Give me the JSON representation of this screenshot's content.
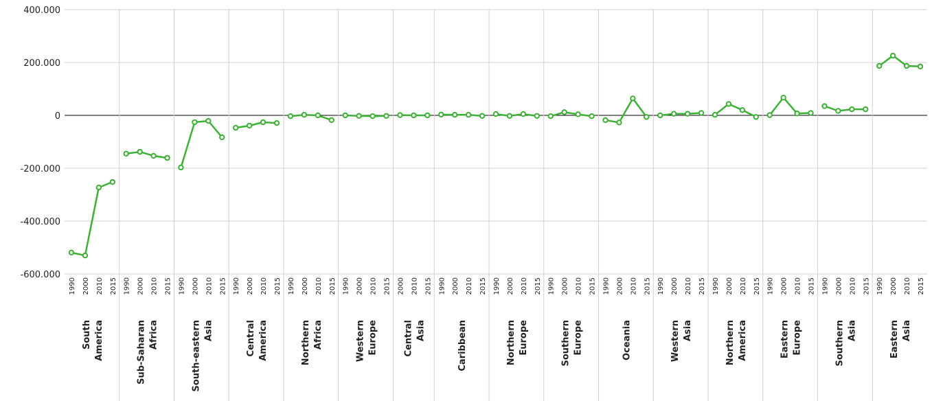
{
  "chart_data": {
    "type": "line",
    "color": "#3cb034",
    "ylim": [
      -600000,
      400000
    ],
    "yticks": [
      {
        "value": -600000,
        "label": "-600.000"
      },
      {
        "value": -400000,
        "label": "-400.000"
      },
      {
        "value": -200000,
        "label": "-200.000"
      },
      0,
      {
        "value": 200000,
        "label": "200.000"
      },
      {
        "value": 400000,
        "label": "400.000"
      }
    ],
    "grid": true,
    "groups": [
      {
        "name": "South America",
        "categories": [
          "1990",
          "2000",
          "2010",
          "2015"
        ],
        "values": [
          -519000,
          -530000,
          -273000,
          -252000
        ]
      },
      {
        "name": "Sub-Saharan Africa",
        "categories": [
          "1990",
          "2000",
          "2010",
          "2015"
        ],
        "values": [
          -145000,
          -138000,
          -153000,
          -161000
        ]
      },
      {
        "name": "South-eastern Asia",
        "categories": [
          "1990",
          "2000",
          "2010",
          "2015"
        ],
        "values": [
          -197000,
          -26000,
          -21000,
          -83000
        ]
      },
      {
        "name": "Central America",
        "categories": [
          "1990",
          "2000",
          "2010",
          "2015"
        ],
        "values": [
          -47000,
          -39000,
          -26000,
          -29000
        ]
      },
      {
        "name": "Northern Africa",
        "categories": [
          "1990",
          "2000",
          "2010",
          "2015"
        ],
        "values": [
          -3000,
          2000,
          0,
          -18000
        ]
      },
      {
        "name": "Western Europe",
        "categories": [
          "1990",
          "2000",
          "2010",
          "2015"
        ],
        "values": [
          0,
          -2000,
          -3000,
          -2000
        ]
      },
      {
        "name": "Central Asia",
        "categories": [
          "2000",
          "2010",
          "2015"
        ],
        "values": [
          1000,
          0,
          0
        ]
      },
      {
        "name": "Caribbean",
        "categories": [
          "1990",
          "2000",
          "2010",
          "2015"
        ],
        "values": [
          3000,
          2000,
          2000,
          -2000
        ]
      },
      {
        "name": "Northern Europe",
        "categories": [
          "1990",
          "2000",
          "2010",
          "2015"
        ],
        "values": [
          5000,
          -2000,
          5000,
          -2000
        ]
      },
      {
        "name": "Southern Europe",
        "categories": [
          "1990",
          "2000",
          "2010",
          "2015"
        ],
        "values": [
          -3000,
          12000,
          4000,
          -3000
        ]
      },
      {
        "name": "Oceania",
        "categories": [
          "1990",
          "2000",
          "2010",
          "2015"
        ],
        "values": [
          -18000,
          -27000,
          64000,
          -6000
        ]
      },
      {
        "name": "Western Asia",
        "categories": [
          "1990",
          "2000",
          "2010",
          "2015"
        ],
        "values": [
          0,
          6000,
          6000,
          9000
        ]
      },
      {
        "name": "Northern America",
        "categories": [
          "1990",
          "2000",
          "2010",
          "2015"
        ],
        "values": [
          2000,
          43000,
          20000,
          -6000
        ]
      },
      {
        "name": "Eastern Europe",
        "categories": [
          "1990",
          "2000",
          "2010",
          "2015"
        ],
        "values": [
          1000,
          67000,
          7000,
          9000
        ]
      },
      {
        "name": "Southern Asia",
        "categories": [
          "1990",
          "2000",
          "2010",
          "2015"
        ],
        "values": [
          35000,
          17000,
          23000,
          23000
        ]
      },
      {
        "name": "Eastern Asia",
        "categories": [
          "1990",
          "2000",
          "2010",
          "2015"
        ],
        "values": [
          187000,
          226000,
          187000,
          185000
        ]
      }
    ]
  }
}
